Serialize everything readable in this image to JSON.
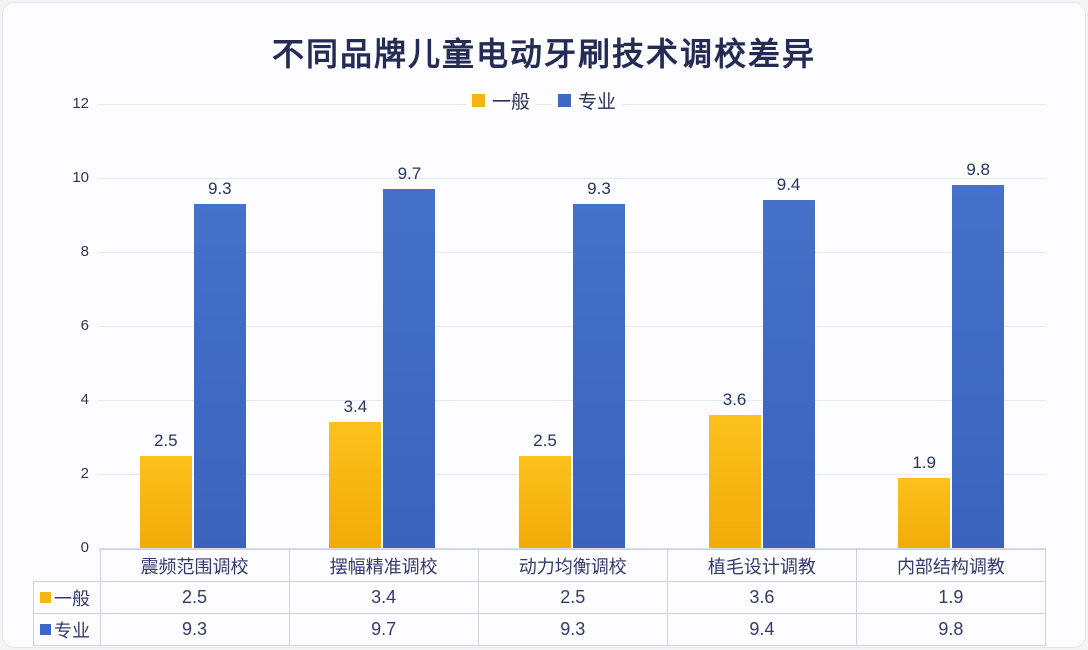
{
  "title": "不同品牌儿童电动牙刷技术调校差异",
  "colors": {
    "series_general": "#f5b513",
    "series_pro": "#3d68c5",
    "title_text": "#242c55",
    "data_label_text": "#24355e",
    "tick_text": "#2e3553",
    "table_text": "#333a6e",
    "gridline": "#e4e9f2",
    "table_border": "#cbd3e2",
    "background": "#fdfdff"
  },
  "chart_data": {
    "type": "bar",
    "title": "不同品牌儿童电动牙刷技术调校差异",
    "categories": [
      "震频范围调校",
      "摆幅精准调校",
      "动力均衡调校",
      "植毛设计调教",
      "内部结构调教"
    ],
    "series": [
      {
        "name": "一般",
        "color": "#f5b513",
        "values": [
          2.5,
          3.4,
          2.5,
          3.6,
          1.9
        ]
      },
      {
        "name": "专业",
        "color": "#3d68c5",
        "values": [
          9.3,
          9.7,
          9.3,
          9.4,
          9.8
        ]
      }
    ],
    "xlabel": "",
    "ylabel": "",
    "ylim": [
      0,
      12
    ],
    "yticks": [
      0,
      2,
      4,
      6,
      8,
      10,
      12
    ],
    "grid": true,
    "legend_position": "top-center",
    "data_table": true,
    "data_labels": true
  }
}
